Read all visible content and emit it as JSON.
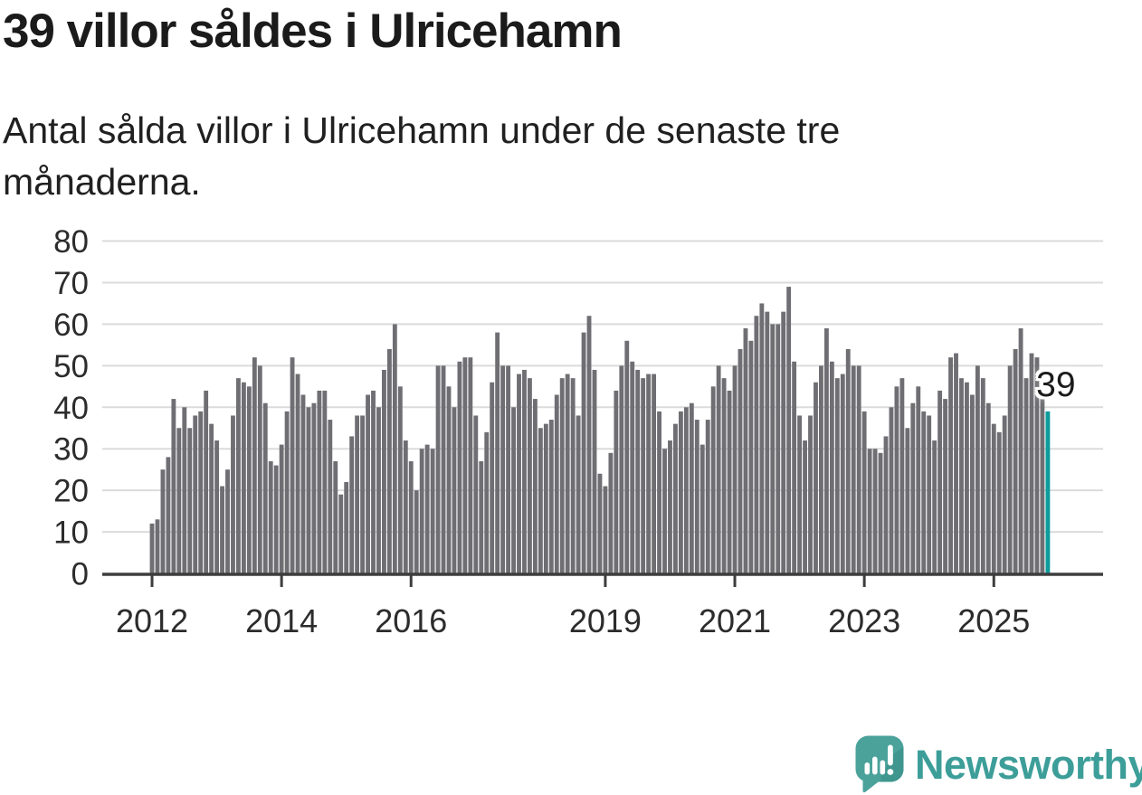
{
  "header": {
    "title": "39 villor såldes i Ulricehamn",
    "subtitle": "Antal sålda villor i Ulricehamn under de senaste tre månaderna."
  },
  "chart_data": {
    "type": "bar",
    "title": "39 villor såldes i Ulricehamn",
    "subtitle": "Antal sålda villor i Ulricehamn under de senaste tre månaderna.",
    "ylabel": "",
    "xlabel": "",
    "ylim": [
      0,
      80
    ],
    "yticks": [
      0,
      10,
      20,
      30,
      40,
      50,
      60,
      70,
      80
    ],
    "grid": true,
    "legend_position": "none",
    "x_start_year": 2012,
    "frequency": "monthly",
    "x_tick_labels": [
      "2012",
      "2014",
      "2016",
      "2019",
      "2021",
      "2023",
      "2025"
    ],
    "x_tick_indices": [
      0,
      24,
      48,
      84,
      108,
      132,
      156
    ],
    "values": [
      12,
      13,
      25,
      28,
      42,
      35,
      40,
      35,
      38,
      39,
      44,
      36,
      32,
      21,
      25,
      38,
      47,
      46,
      45,
      52,
      50,
      41,
      27,
      26,
      31,
      39,
      52,
      48,
      43,
      40,
      41,
      44,
      44,
      37,
      27,
      19,
      22,
      33,
      38,
      38,
      43,
      44,
      40,
      49,
      54,
      60,
      45,
      32,
      27,
      20,
      30,
      31,
      30,
      50,
      50,
      45,
      40,
      51,
      52,
      52,
      38,
      27,
      34,
      46,
      58,
      50,
      50,
      40,
      48,
      49,
      47,
      42,
      35,
      36,
      37,
      43,
      47,
      48,
      47,
      38,
      58,
      62,
      49,
      24,
      21,
      29,
      44,
      50,
      56,
      51,
      49,
      47,
      48,
      48,
      39,
      30,
      32,
      36,
      39,
      40,
      41,
      37,
      31,
      37,
      45,
      50,
      47,
      44,
      50,
      54,
      59,
      56,
      62,
      65,
      63,
      60,
      60,
      63,
      69,
      51,
      38,
      32,
      38,
      46,
      50,
      59,
      51,
      47,
      48,
      54,
      50,
      50,
      39,
      30,
      30,
      29,
      33,
      40,
      45,
      47,
      35,
      41,
      45,
      39,
      38,
      32,
      44,
      42,
      52,
      53,
      47,
      46,
      43,
      50,
      47,
      41,
      36,
      34,
      38,
      50,
      54,
      59,
      47,
      53,
      52,
      42,
      39
    ],
    "bar_color": "#6f6e73",
    "highlight": {
      "index": 166,
      "value": 39,
      "label": "39",
      "color": "#0d9b9b"
    }
  },
  "footer": {
    "brand": "Newsworthy"
  },
  "colors": {
    "accent_teal": "#0d9b9b",
    "bar_gray": "#6f6e73",
    "grid_gray": "#dbdbdb",
    "axis_dark": "#3d3d3d",
    "tick_text": "#2c2c2c",
    "logo_teal": "#4aa29b",
    "logo_teal_dark": "#3f968f",
    "brand_text": "#3d9e99",
    "text_dark": "#1b1b1b"
  }
}
